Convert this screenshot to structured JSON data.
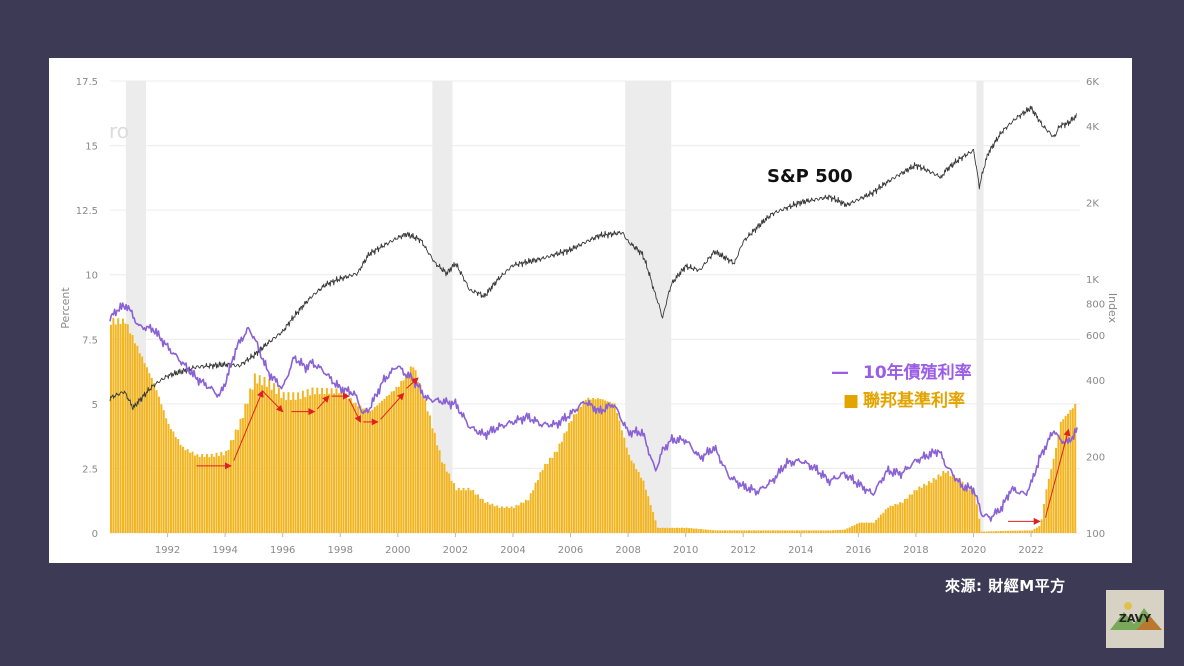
{
  "source_text": "來源: 財經M平方",
  "logo_text": "ZAVY",
  "colors": {
    "background": "#3d3a55",
    "fed_funds": "#f2b51f",
    "treasury": "#8a62d6",
    "sp500": "#3a3a3a",
    "recession": "#ececec",
    "arrow": "#e02020",
    "label_purple": "#9b5de5",
    "label_gold": "#e3a400"
  },
  "chart_data": {
    "type": "line",
    "left_axis": {
      "label": "Percent",
      "ticks": [
        "0",
        "2.5",
        "5",
        "7.5",
        "10",
        "12.5",
        "15",
        "17.5"
      ],
      "range": [
        0,
        17.5
      ]
    },
    "right_axis": {
      "label": "Index",
      "scale": "log",
      "ticks": [
        "100",
        "200",
        "400",
        "600",
        "800",
        "1K",
        "2K",
        "4K",
        "6K"
      ],
      "range": [
        100,
        6000
      ]
    },
    "x_axis": {
      "ticks": [
        "1992",
        "1994",
        "1996",
        "1998",
        "2000",
        "2002",
        "2004",
        "2006",
        "2008",
        "2010",
        "2012",
        "2014",
        "2016",
        "2018",
        "2020",
        "2022"
      ],
      "range": [
        1990,
        2023.7
      ]
    },
    "grid": true,
    "watermark": "ro",
    "recessions": [
      [
        1990.55,
        1991.25
      ],
      [
        2001.2,
        2001.9
      ],
      [
        2007.9,
        2009.5
      ],
      [
        2020.1,
        2020.35
      ]
    ],
    "annotation": "S&P 500",
    "legend": [
      {
        "label": "10年債殖利率",
        "marker": "—"
      },
      {
        "label": "聯邦基準利率",
        "marker": "■"
      }
    ],
    "series": [
      {
        "name": "聯邦基準利率",
        "type": "bar",
        "axis": "left",
        "x": [
          1990,
          1990.5,
          1991,
          1991.5,
          1992,
          1992.5,
          1993,
          1993.5,
          1994,
          1994.5,
          1995,
          1995.5,
          1996,
          1996.5,
          1997,
          1997.5,
          1998,
          1998.5,
          1999,
          1999.5,
          2000,
          2000.5,
          2001,
          2001.5,
          2002,
          2002.5,
          2003,
          2003.5,
          2004,
          2004.5,
          2005,
          2005.5,
          2006,
          2006.5,
          2007,
          2007.5,
          2008,
          2008.5,
          2009,
          2010,
          2011,
          2012,
          2013,
          2014,
          2015,
          2015.5,
          2016,
          2016.5,
          2017,
          2017.5,
          2018,
          2018.5,
          2019,
          2019.5,
          2020,
          2020.25,
          2021,
          2022,
          2022.3,
          2022.5,
          2022.8,
          2023,
          2023.3,
          2023.6
        ],
        "values": [
          8.2,
          8.2,
          7.0,
          5.8,
          4.2,
          3.3,
          3.0,
          3.0,
          3.1,
          4.3,
          6.0,
          5.8,
          5.3,
          5.3,
          5.5,
          5.5,
          5.5,
          5.0,
          4.7,
          5.2,
          5.7,
          6.5,
          4.8,
          2.8,
          1.7,
          1.7,
          1.2,
          1.0,
          1.0,
          1.3,
          2.5,
          3.2,
          4.4,
          5.2,
          5.2,
          5.0,
          3.0,
          2.0,
          0.2,
          0.2,
          0.1,
          0.1,
          0.1,
          0.1,
          0.1,
          0.13,
          0.4,
          0.4,
          1.0,
          1.2,
          1.7,
          2.0,
          2.4,
          2.0,
          1.6,
          0.05,
          0.08,
          0.1,
          0.3,
          1.7,
          3.1,
          4.3,
          4.7,
          5.1
        ]
      },
      {
        "name": "10年債殖利率",
        "type": "line",
        "axis": "left",
        "x": [
          1990,
          1990.3,
          1990.6,
          1991,
          1991.5,
          1992,
          1992.5,
          1993,
          1993.5,
          1993.8,
          1994,
          1994.4,
          1994.8,
          1995,
          1995.5,
          1996,
          1996.4,
          1996.8,
          1997,
          1997.4,
          1997.8,
          1998,
          1998.5,
          1998.8,
          1999,
          1999.5,
          2000,
          2000.2,
          2000.5,
          2001,
          2001.5,
          2002,
          2002.5,
          2003,
          2003.5,
          2004,
          2004.5,
          2005,
          2005.5,
          2006,
          2006.5,
          2007,
          2007.5,
          2008,
          2008.5,
          2008.95,
          2009.2,
          2009.5,
          2010,
          2010.5,
          2011,
          2011.5,
          2012,
          2012.5,
          2013,
          2013.5,
          2014,
          2014.5,
          2015,
          2015.5,
          2016,
          2016.5,
          2017,
          2017.5,
          2018,
          2018.8,
          2019,
          2019.6,
          2020,
          2020.3,
          2020.6,
          2021,
          2021.3,
          2021.8,
          2022,
          2022.3,
          2022.8,
          2023,
          2023.3,
          2023.6
        ],
        "values": [
          8.3,
          8.7,
          8.8,
          8.0,
          7.9,
          7.2,
          6.6,
          6.0,
          5.6,
          5.3,
          5.8,
          7.2,
          7.9,
          7.6,
          6.2,
          5.6,
          6.8,
          6.4,
          6.6,
          6.3,
          5.8,
          5.6,
          5.4,
          4.6,
          4.8,
          5.9,
          6.5,
          6.2,
          6.0,
          5.2,
          5.1,
          5.0,
          4.1,
          3.8,
          4.1,
          4.3,
          4.5,
          4.2,
          4.2,
          4.6,
          5.1,
          4.7,
          5.0,
          3.9,
          3.9,
          2.4,
          3.2,
          3.6,
          3.6,
          2.9,
          3.3,
          2.2,
          1.8,
          1.6,
          2.0,
          2.7,
          2.8,
          2.5,
          2.0,
          2.3,
          1.9,
          1.5,
          2.4,
          2.3,
          2.8,
          3.2,
          2.7,
          1.8,
          1.7,
          0.7,
          0.6,
          1.0,
          1.7,
          1.5,
          1.9,
          2.9,
          4.0,
          3.6,
          3.5,
          4.0
        ]
      },
      {
        "name": "S&P 500",
        "type": "line",
        "axis": "right",
        "x": [
          1990,
          1990.5,
          1990.8,
          1991,
          1991.5,
          1992,
          1993,
          1994,
          1994.5,
          1995,
          1995.5,
          1996,
          1997,
          1997.5,
          1998,
          1998.6,
          1999,
          1999.5,
          2000,
          2000.3,
          2000.8,
          2001,
          2001.3,
          2001.7,
          2002,
          2002.5,
          2002.8,
          2003,
          2003.5,
          2004,
          2005,
          2006,
          2007,
          2007.8,
          2008,
          2008.5,
          2008.9,
          2009.2,
          2009.5,
          2010,
          2010.5,
          2011,
          2011.7,
          2012,
          2013,
          2014,
          2015,
          2015.6,
          2016,
          2016.5,
          2017,
          2018,
          2018.9,
          2019,
          2019.5,
          2020,
          2020.2,
          2020.5,
          2021,
          2021.5,
          2022,
          2022.4,
          2022.8,
          2023,
          2023.3,
          2023.6
        ],
        "values": [
          340,
          360,
          310,
          330,
          380,
          415,
          450,
          460,
          455,
          500,
          560,
          620,
          850,
          950,
          1000,
          1050,
          1250,
          1350,
          1450,
          1500,
          1420,
          1300,
          1150,
          1050,
          1150,
          900,
          880,
          850,
          1000,
          1130,
          1200,
          1300,
          1480,
          1520,
          1400,
          1250,
          900,
          700,
          950,
          1120,
          1080,
          1280,
          1150,
          1400,
          1800,
          2000,
          2100,
          1950,
          2050,
          2180,
          2400,
          2800,
          2500,
          2650,
          2950,
          3200,
          2300,
          3100,
          3800,
          4300,
          4700,
          4000,
          3600,
          4000,
          4100,
          4400
        ]
      }
    ]
  }
}
